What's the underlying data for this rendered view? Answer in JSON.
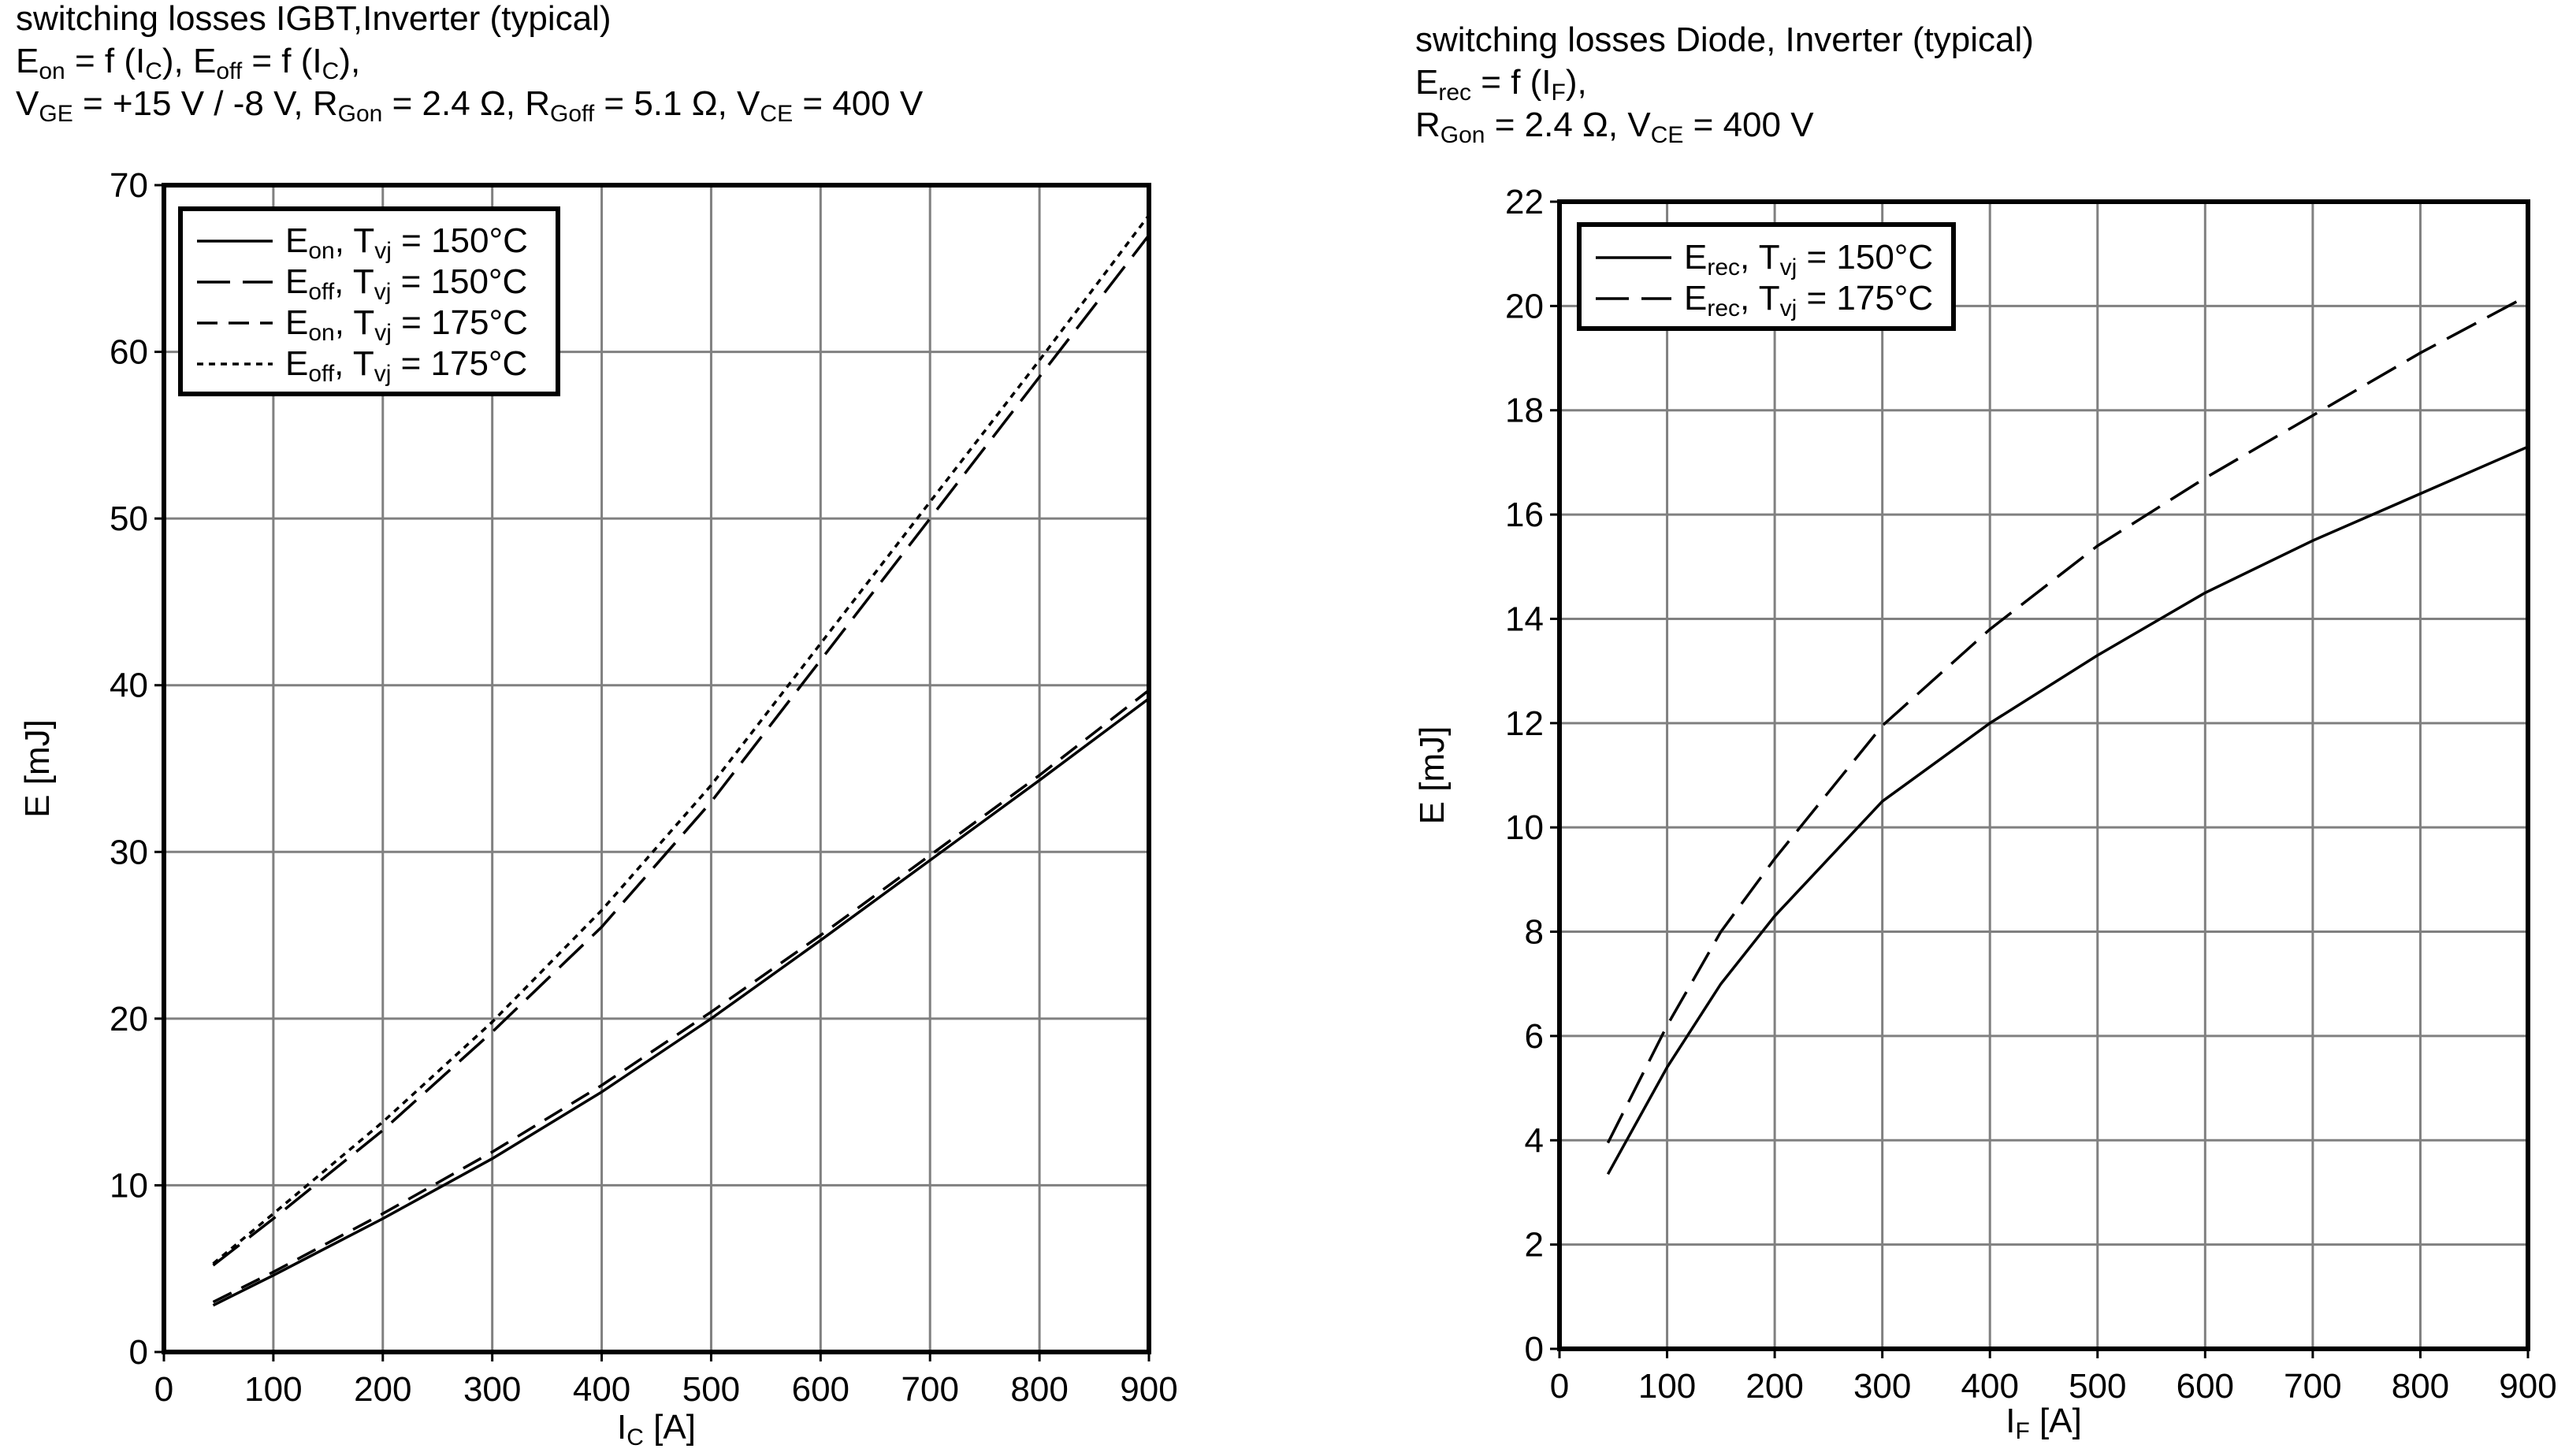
{
  "chart_data": [
    {
      "type": "line",
      "title": [
        [
          "switching losses IGBT,Inverter (typical)"
        ],
        [
          "E",
          "on",
          " = f (I",
          "C",
          "), E",
          "off",
          " = f (I",
          "C",
          "),"
        ],
        [
          "V",
          "GE",
          " = +15 V / -8 V, R",
          "Gon",
          " = 2.4 Ω, R",
          "Goff",
          " = 5.1 Ω, V",
          "CE",
          " = 400 V"
        ]
      ],
      "xlabel": [
        "I",
        "C",
        " [A]"
      ],
      "ylabel": [
        "E [mJ]"
      ],
      "x": [
        45,
        100,
        200,
        300,
        400,
        500,
        600,
        700,
        800,
        900
      ],
      "series": [
        {
          "name": [
            "E",
            "on",
            ", T",
            "vj",
            " = 150°C"
          ],
          "color": "#000000",
          "line_style": "solid",
          "values": [
            2.8,
            4.6,
            8.0,
            11.6,
            15.6,
            20.0,
            24.7,
            29.5,
            34.3,
            39.2
          ]
        },
        {
          "name": [
            "E",
            "off",
            ", T",
            "vj",
            " = 150°C"
          ],
          "color": "#000000",
          "line_style": "long-dash",
          "values": [
            5.2,
            8.0,
            13.3,
            19.2,
            25.5,
            33.0,
            41.5,
            50.0,
            58.5,
            67.0
          ]
        },
        {
          "name": [
            "E",
            "on",
            ", T",
            "vj",
            " = 175°C"
          ],
          "color": "#000000",
          "line_style": "dash",
          "values": [
            3.0,
            4.8,
            8.3,
            12.0,
            16.0,
            20.4,
            25.0,
            29.8,
            34.6,
            39.7
          ]
        },
        {
          "name": [
            "E",
            "off",
            ", T",
            "vj",
            " = 175°C"
          ],
          "color": "#000000",
          "line_style": "dotted",
          "values": [
            5.3,
            8.3,
            13.8,
            19.8,
            26.5,
            34.0,
            42.5,
            51.0,
            59.5,
            68.2
          ]
        }
      ],
      "xlim": [
        0,
        900
      ],
      "xticks": [
        0,
        100,
        200,
        300,
        400,
        500,
        600,
        700,
        800,
        900
      ],
      "ylim": [
        0,
        70
      ],
      "yticks": [
        0,
        10,
        20,
        30,
        40,
        50,
        60,
        70
      ],
      "grid": true,
      "legend": "upper left"
    },
    {
      "type": "line",
      "title": [
        [
          "switching losses Diode, Inverter (typical)"
        ],
        [
          "E",
          "rec",
          " = f (I",
          "F",
          "),"
        ],
        [
          "R",
          "Gon",
          " = 2.4 Ω, V",
          "CE",
          " = 400 V"
        ]
      ],
      "xlabel": [
        "I",
        "F",
        " [A]"
      ],
      "ylabel": [
        "E [mJ]"
      ],
      "x": [
        45,
        100,
        150,
        200,
        300,
        400,
        500,
        600,
        700,
        800,
        900
      ],
      "series": [
        {
          "name": [
            "E",
            "rec",
            ", T",
            "vj",
            " = 150°C"
          ],
          "color": "#000000",
          "line_style": "solid",
          "values": [
            3.35,
            5.4,
            7.0,
            8.3,
            10.5,
            12.0,
            13.3,
            14.5,
            15.5,
            16.4,
            17.3
          ]
        },
        {
          "name": [
            "E",
            "rec",
            ", T",
            "vj",
            " = 175°C"
          ],
          "color": "#000000",
          "line_style": "long-dash",
          "values": [
            3.95,
            6.2,
            8.0,
            9.4,
            11.95,
            13.8,
            15.4,
            16.7,
            17.9,
            19.1,
            20.2
          ]
        }
      ],
      "xlim": [
        0,
        900
      ],
      "xticks": [
        0,
        100,
        200,
        300,
        400,
        500,
        600,
        700,
        800,
        900
      ],
      "ylim": [
        0,
        22
      ],
      "yticks": [
        0,
        2,
        4,
        6,
        8,
        10,
        12,
        14,
        16,
        18,
        20,
        22
      ],
      "grid": true,
      "legend": "upper left"
    }
  ]
}
